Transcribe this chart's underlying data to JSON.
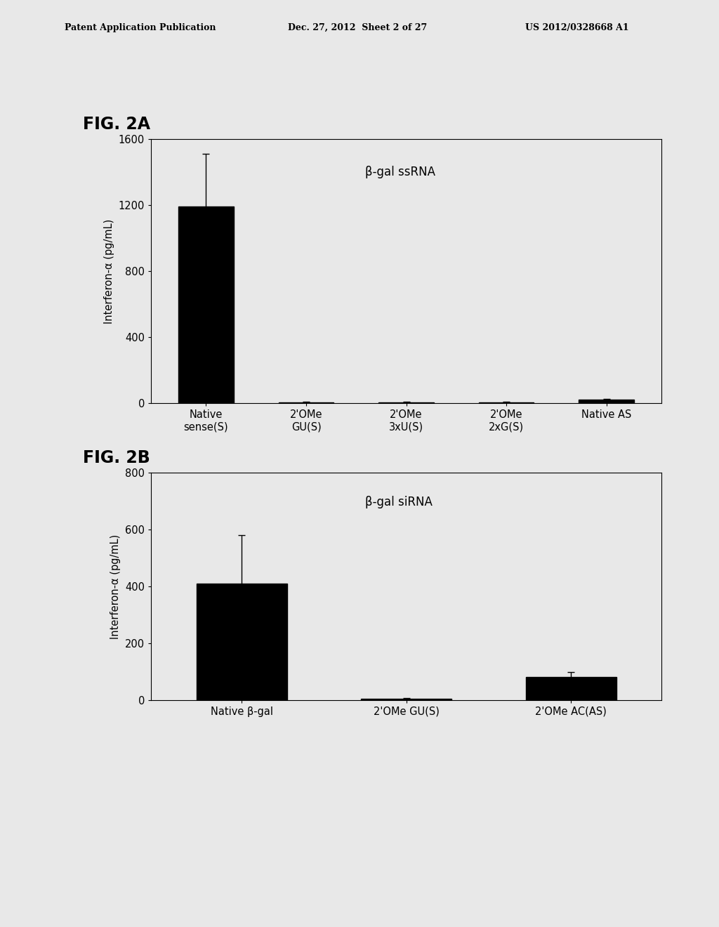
{
  "fig2a": {
    "title": "β-gal ssRNA",
    "categories": [
      "Native\nsense(S)",
      "2'OMe\nGU(S)",
      "2'OMe\n3xU(S)",
      "2'OMe\n2xG(S)",
      "Native AS"
    ],
    "values": [
      1190,
      5,
      5,
      5,
      20
    ],
    "errors": [
      320,
      5,
      5,
      5,
      5
    ],
    "ylabel": "Interferon-α (pg/mL)",
    "ylim": [
      0,
      1600
    ],
    "yticks": [
      0,
      400,
      800,
      1200,
      1600
    ]
  },
  "fig2b": {
    "title": "β-gal siRNA",
    "categories": [
      "Native β-gal",
      "2'OMe GU(S)",
      "2'OMe AC(AS)"
    ],
    "values": [
      410,
      3,
      80
    ],
    "errors": [
      170,
      3,
      18
    ],
    "ylabel": "Interferon-α (pg/mL)",
    "ylim": [
      0,
      800
    ],
    "yticks": [
      0,
      200,
      400,
      600,
      800
    ]
  },
  "header_left": "Patent Application Publication",
  "header_mid": "Dec. 27, 2012  Sheet 2 of 27",
  "header_right": "US 2012/0328668 A1",
  "fig2a_label": "FIG. 2A",
  "fig2b_label": "FIG. 2B",
  "bar_color": "#000000",
  "bg_color": "#e8e8e8",
  "plot_bg": "#e8e8e8",
  "text_color": "#000000",
  "bar_width": 0.55,
  "title_fontsize": 12,
  "label_fontsize": 10.5,
  "tick_fontsize": 10.5,
  "figlabel_fontsize": 17,
  "header_fontsize": 9
}
